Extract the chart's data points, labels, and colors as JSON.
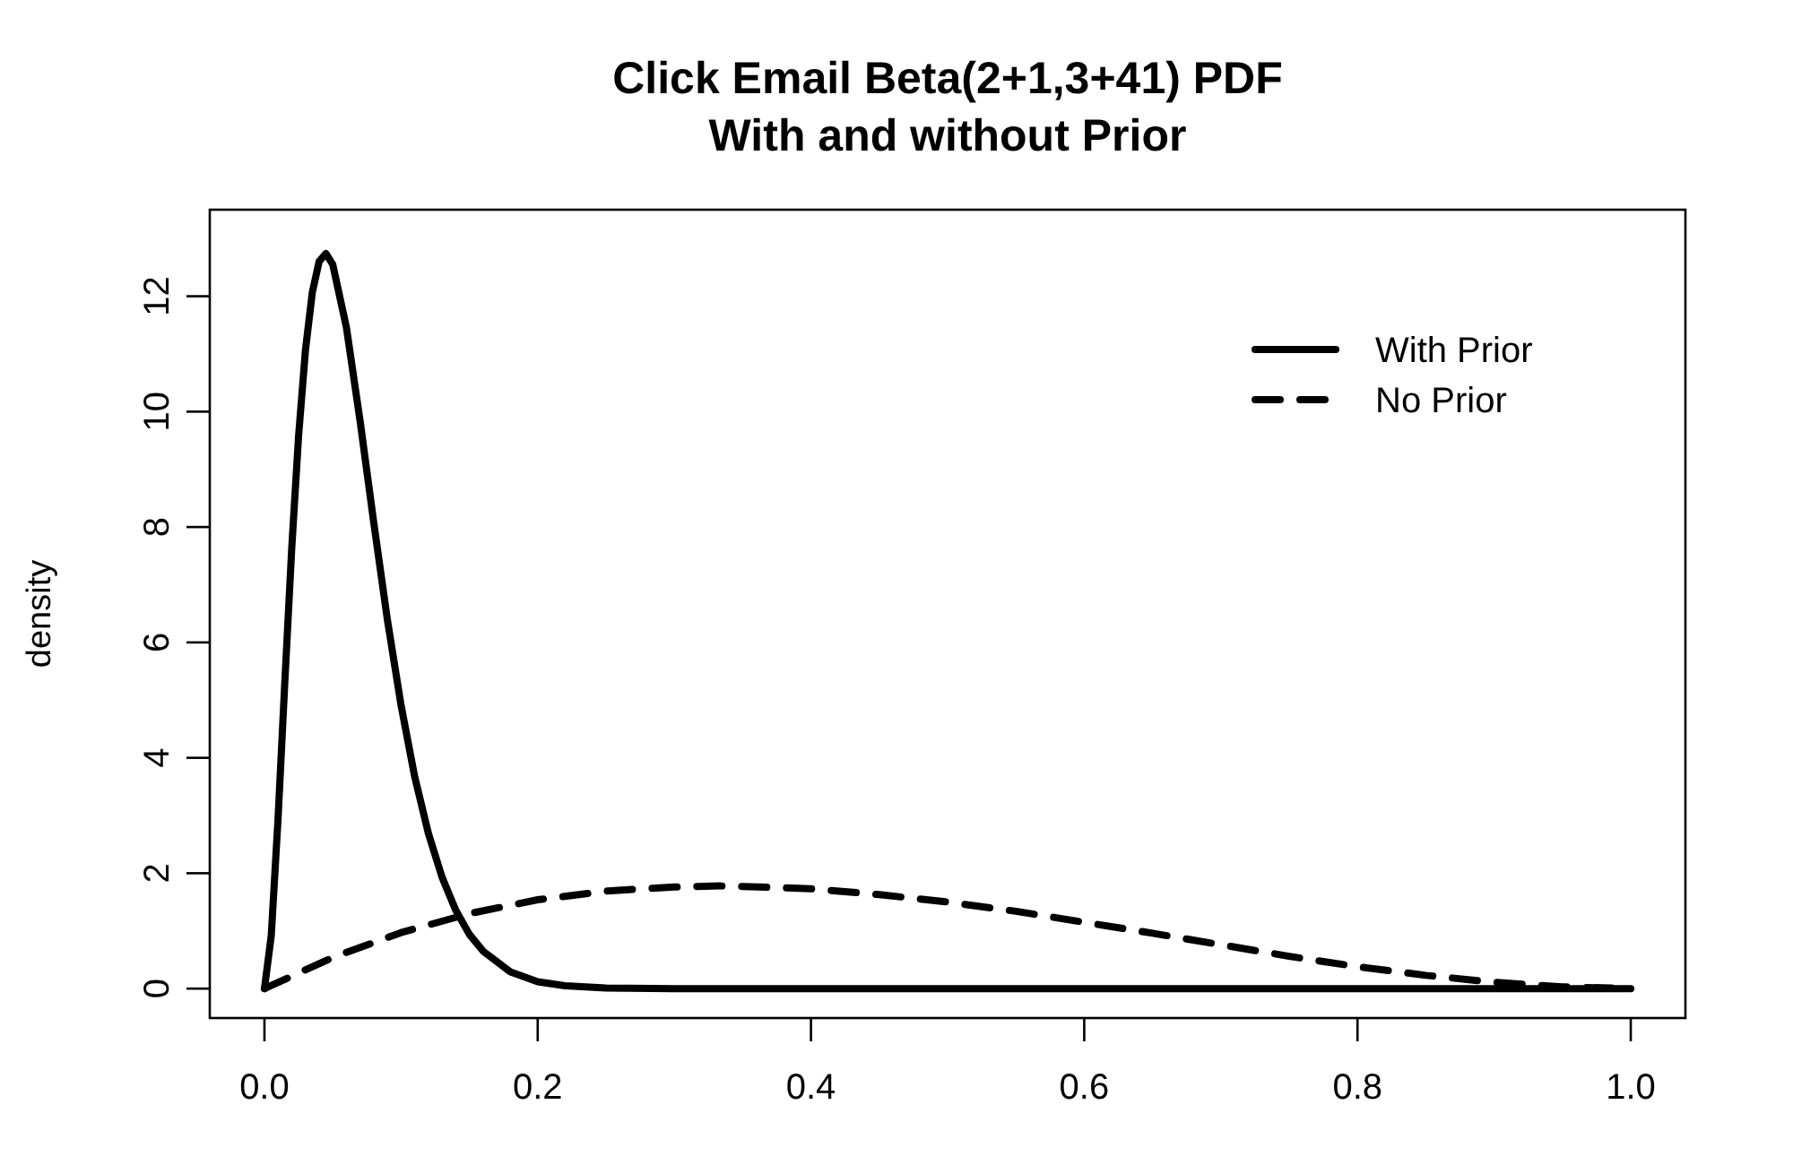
{
  "chart_data": {
    "type": "line",
    "title": "Click Email Beta(2+1,3+41) PDF\nWith and without Prior",
    "ylabel": "density",
    "xlim": [
      -0.04,
      1.04
    ],
    "ylim": [
      -0.51,
      13.5
    ],
    "xticks": [
      {
        "value": 0,
        "label": "0.0"
      },
      0.2,
      0.4,
      0.6,
      0.8,
      {
        "value": 1,
        "label": "1.0"
      }
    ],
    "yticks": [
      0,
      2,
      4,
      6,
      8,
      10,
      12
    ],
    "legend": "top right",
    "grid": false,
    "marker": "none",
    "series": [
      {
        "name": "With Prior",
        "color": "#000000",
        "line_style": "solid",
        "x": [
          0,
          0.005,
          0.01,
          0.015,
          0.02,
          0.025,
          0.03,
          0.035,
          0.04,
          0.045,
          0.05,
          0.06,
          0.07,
          0.08,
          0.09,
          0.1,
          0.11,
          0.12,
          0.13,
          0.14,
          0.15,
          0.16,
          0.18,
          0.2,
          0.22,
          0.25,
          0.3,
          0.4,
          0.5,
          0.6,
          0.7,
          0.8,
          0.9,
          1.0
        ],
        "values": [
          0,
          0.92,
          2.96,
          5.35,
          7.64,
          9.58,
          11.06,
          12.06,
          12.6,
          12.74,
          12.55,
          11.46,
          9.84,
          8.08,
          6.39,
          4.91,
          3.67,
          2.69,
          1.93,
          1.36,
          0.94,
          0.65,
          0.29,
          0.12,
          0.05,
          0.01,
          0,
          0,
          0,
          0,
          0,
          0,
          0,
          0
        ]
      },
      {
        "name": "No Prior",
        "color": "#000000",
        "line_style": "dashed",
        "x": [
          0,
          0.05,
          0.1,
          0.15,
          0.2,
          0.25,
          0.3,
          0.3333,
          0.35,
          0.4,
          0.45,
          0.5,
          0.55,
          0.6,
          0.65,
          0.7,
          0.75,
          0.8,
          0.85,
          0.9,
          0.95,
          1.0
        ],
        "values": [
          0,
          0.54,
          0.97,
          1.3,
          1.54,
          1.69,
          1.76,
          1.78,
          1.77,
          1.73,
          1.63,
          1.5,
          1.34,
          1.15,
          0.96,
          0.76,
          0.56,
          0.38,
          0.23,
          0.11,
          0.03,
          0
        ]
      }
    ]
  }
}
